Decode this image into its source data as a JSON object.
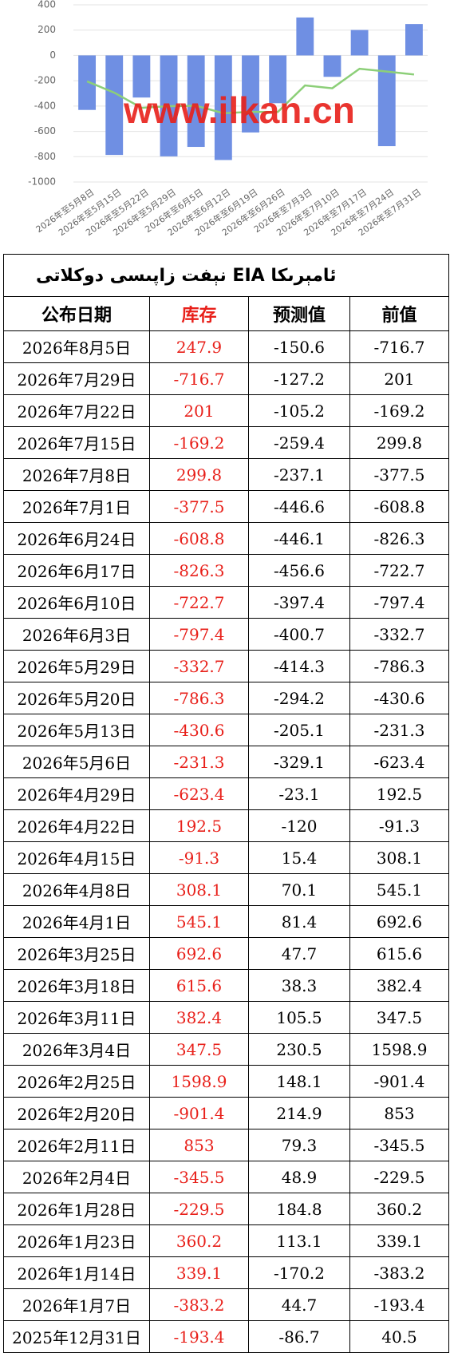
{
  "chart_data": {
    "type": "bar",
    "categories": [
      "2026年至5月8日",
      "2026年至5月15日",
      "2026年至5月22日",
      "2026年至5月29日",
      "2026年至6月5日",
      "2026年至6月12日",
      "2026年至6月19日",
      "2026年至6月26日",
      "2026年至7月3日",
      "2026年至7月10日",
      "2026年至7月17日",
      "2026年至7月24日",
      "2026年至7月31日"
    ],
    "series": [
      {
        "type": "bar",
        "color": "#6f8fe3",
        "values": [
          -430.6,
          -786.3,
          -332.7,
          -797.4,
          -722.7,
          -826.3,
          -608.8,
          -377.5,
          299.8,
          -169.2,
          201,
          -716.7,
          247.9
        ]
      },
      {
        "type": "line",
        "color": "#8ccf78",
        "values": [
          -205.1,
          -294.2,
          -414.3,
          -400.7,
          -397.4,
          -456.6,
          -446.1,
          -446.6,
          -237.1,
          -259.4,
          -105.2,
          -127.2,
          -150.6
        ]
      }
    ],
    "ylim": [
      -1000,
      400
    ],
    "yticks": [
      -1000,
      -800,
      -600,
      -400,
      -200,
      0,
      200,
      400
    ],
    "grid": true
  },
  "watermark": "www.ilkan.cn",
  "table": {
    "title": "ئامېرىكا EIA نېفت زاپىسى دوكلاتى",
    "header": [
      "公布日期",
      "库存",
      "预测值",
      "前值"
    ],
    "rows": [
      [
        "2026年8月5日",
        "247.9",
        "-150.6",
        "-716.7"
      ],
      [
        "2026年7月29日",
        "-716.7",
        "-127.2",
        "201"
      ],
      [
        "2026年7月22日",
        "201",
        "-105.2",
        "-169.2"
      ],
      [
        "2026年7月15日",
        "-169.2",
        "-259.4",
        "299.8"
      ],
      [
        "2026年7月8日",
        "299.8",
        "-237.1",
        "-377.5"
      ],
      [
        "2026年7月1日",
        "-377.5",
        "-446.6",
        "-608.8"
      ],
      [
        "2026年6月24日",
        "-608.8",
        "-446.1",
        "-826.3"
      ],
      [
        "2026年6月17日",
        "-826.3",
        "-456.6",
        "-722.7"
      ],
      [
        "2026年6月10日",
        "-722.7",
        "-397.4",
        "-797.4"
      ],
      [
        "2026年6月3日",
        "-797.4",
        "-400.7",
        "-332.7"
      ],
      [
        "2026年5月29日",
        "-332.7",
        "-414.3",
        "-786.3"
      ],
      [
        "2026年5月20日",
        "-786.3",
        "-294.2",
        "-430.6"
      ],
      [
        "2026年5月13日",
        "-430.6",
        "-205.1",
        "-231.3"
      ],
      [
        "2026年5月6日",
        "-231.3",
        "-329.1",
        "-623.4"
      ],
      [
        "2026年4月29日",
        "-623.4",
        "-23.1",
        "192.5"
      ],
      [
        "2026年4月22日",
        "192.5",
        "-120",
        "-91.3"
      ],
      [
        "2026年4月15日",
        "-91.3",
        "15.4",
        "308.1"
      ],
      [
        "2026年4月8日",
        "308.1",
        "70.1",
        "545.1"
      ],
      [
        "2026年4月1日",
        "545.1",
        "81.4",
        "692.6"
      ],
      [
        "2026年3月25日",
        "692.6",
        "47.7",
        "615.6"
      ],
      [
        "2026年3月18日",
        "615.6",
        "38.3",
        "382.4"
      ],
      [
        "2026年3月11日",
        "382.4",
        "105.5",
        "347.5"
      ],
      [
        "2026年3月4日",
        "347.5",
        "230.5",
        "1598.9"
      ],
      [
        "2026年2月25日",
        "1598.9",
        "148.1",
        "-901.4"
      ],
      [
        "2026年2月20日",
        "-901.4",
        "214.9",
        "853"
      ],
      [
        "2026年2月11日",
        "853",
        "79.3",
        "-345.5"
      ],
      [
        "2026年2月4日",
        "-345.5",
        "48.9",
        "-229.5"
      ],
      [
        "2026年1月28日",
        "-229.5",
        "184.8",
        "360.2"
      ],
      [
        "2026年1月23日",
        "360.2",
        "113.1",
        "339.1"
      ],
      [
        "2026年1月14日",
        "339.1",
        "-170.2",
        "-383.2"
      ],
      [
        "2026年1月7日",
        "-383.2",
        "44.7",
        "-193.4"
      ],
      [
        "2025年12月31日",
        "-193.4",
        "-86.7",
        "40.5"
      ]
    ]
  }
}
